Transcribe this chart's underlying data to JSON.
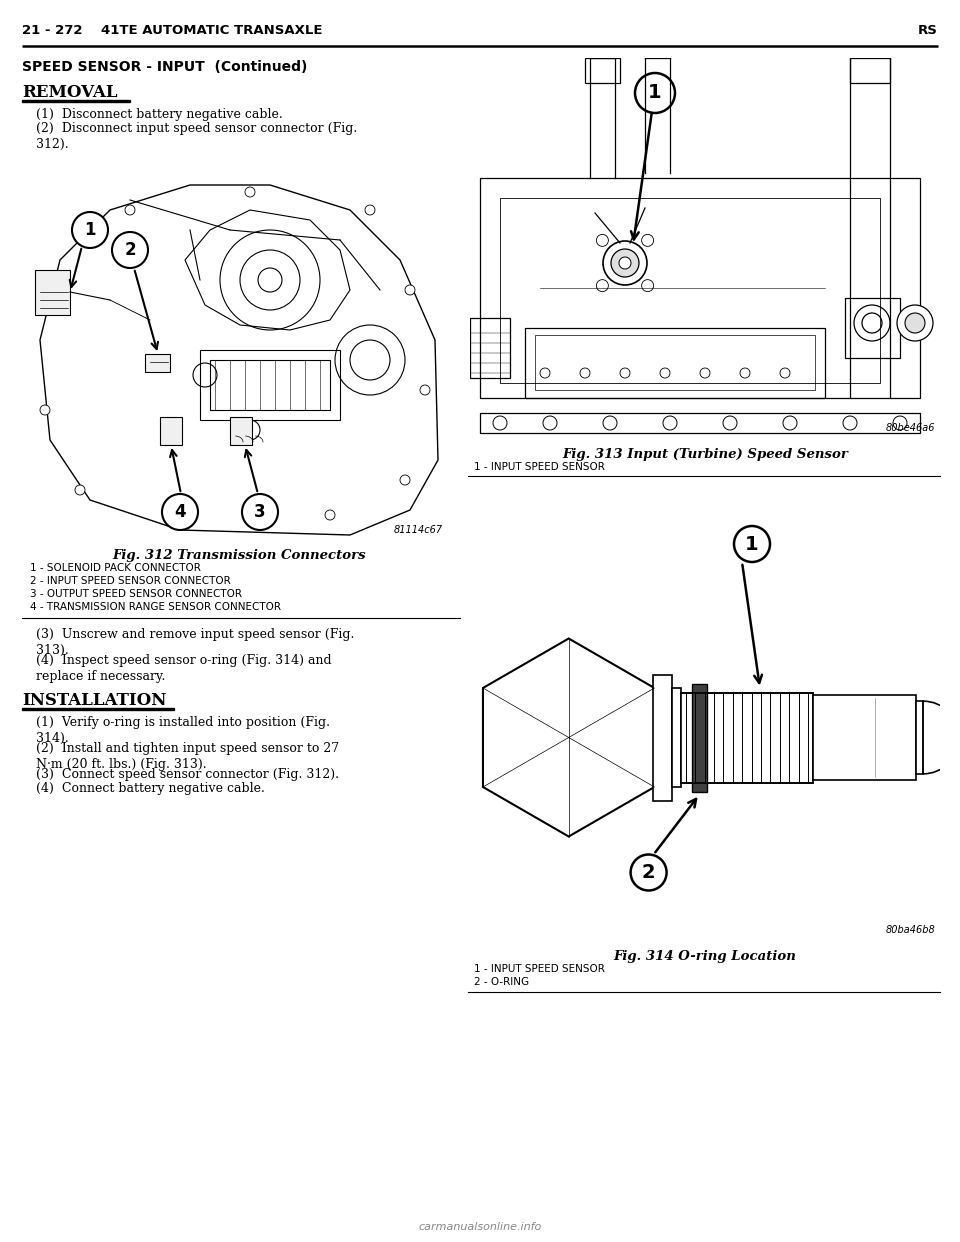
{
  "page_header_left": "21 - 272    41TE AUTOMATIC TRANSAXLE",
  "page_header_right": "RS",
  "section_title": "SPEED SENSOR - INPUT  (Continued)",
  "removal_heading": "REMOVAL",
  "removal_step1": "(1)  Disconnect battery negative cable.",
  "removal_step2": "(2)  Disconnect input speed sensor connector (Fig.\n312).",
  "removal_step3": "(3)  Unscrew and remove input speed sensor (Fig.\n313).",
  "removal_step4": "(4)  Inspect speed sensor o-ring (Fig. 314) and\nreplace if necessary.",
  "fig312_caption": "Fig. 312 Transmission Connectors",
  "fig312_label1": "1 - SOLENOID PACK CONNECTOR",
  "fig312_label2": "2 - INPUT SPEED SENSOR CONNECTOR",
  "fig312_label3": "3 - OUTPUT SPEED SENSOR CONNECTOR",
  "fig312_label4": "4 - TRANSMISSION RANGE SENSOR CONNECTOR",
  "fig312_code": "81114c67",
  "installation_heading": "INSTALLATION",
  "install_step1": "(1)  Verify o-ring is installed into position (Fig.\n314).",
  "install_step2": "(2)  Install and tighten input speed sensor to 27\nN·m (20 ft. lbs.) (Fig. 313).",
  "install_step3": "(3)  Connect speed sensor connector (Fig. 312).",
  "install_step4": "(4)  Connect battery negative cable.",
  "fig313_caption": "Fig. 313 Input (Turbine) Speed Sensor",
  "fig313_label1": "1 - INPUT SPEED SENSOR",
  "fig313_code": "80be46a6",
  "fig314_caption": "Fig. 314 O-ring Location",
  "fig314_label1": "1 - INPUT SPEED SENSOR",
  "fig314_label2": "2 - O-RING",
  "fig314_code": "80ba46b8",
  "watermark": "carmanualsonline.info",
  "bg_color": "#ffffff"
}
